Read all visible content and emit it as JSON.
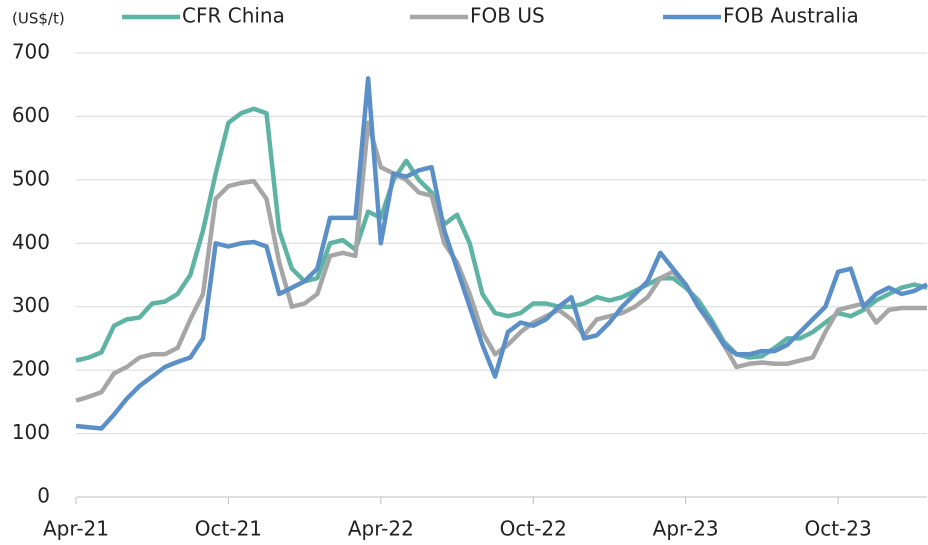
{
  "chart_data": {
    "type": "line",
    "y_label": "(US$/t)",
    "categories": [
      "Apr-21",
      null,
      null,
      null,
      null,
      null,
      null,
      null,
      null,
      null,
      null,
      null,
      "Oct-21",
      null,
      null,
      null,
      null,
      null,
      null,
      null,
      null,
      null,
      null,
      null,
      "Apr-22",
      null,
      null,
      null,
      null,
      null,
      null,
      null,
      null,
      null,
      null,
      null,
      "Oct-22",
      null,
      null,
      null,
      null,
      null,
      null,
      null,
      null,
      null,
      null,
      null,
      "Apr-23",
      null,
      null,
      null,
      null,
      null,
      null,
      null,
      null,
      null,
      null,
      null,
      "Oct-23",
      null,
      null,
      null,
      null,
      null,
      null,
      null
    ],
    "series": [
      {
        "name": "CFR China",
        "color": "#5fb3a3",
        "values": [
          215,
          220,
          228,
          270,
          280,
          283,
          305,
          308,
          320,
          350,
          420,
          510,
          590,
          605,
          612,
          605,
          420,
          360,
          340,
          345,
          400,
          405,
          390,
          450,
          440,
          500,
          530,
          500,
          480,
          430,
          445,
          400,
          320,
          290,
          285,
          290,
          305,
          305,
          300,
          300,
          305,
          315,
          310,
          315,
          325,
          335,
          345,
          345,
          330,
          310,
          280,
          245,
          225,
          220,
          222,
          235,
          250,
          250,
          260,
          275,
          290,
          285,
          295,
          310,
          320,
          330,
          335,
          330
        ]
      },
      {
        "name": "FOB US",
        "color": "#a6a6a6",
        "values": [
          152,
          158,
          165,
          195,
          205,
          220,
          225,
          225,
          235,
          280,
          320,
          470,
          490,
          495,
          498,
          470,
          370,
          300,
          305,
          320,
          380,
          385,
          380,
          590,
          520,
          510,
          500,
          480,
          475,
          400,
          370,
          320,
          260,
          225,
          240,
          260,
          275,
          285,
          295,
          280,
          255,
          280,
          285,
          290,
          300,
          315,
          345,
          355,
          335,
          300,
          270,
          240,
          205,
          210,
          212,
          210,
          210,
          215,
          220,
          260,
          295,
          300,
          305,
          275,
          295,
          298,
          298,
          298
        ]
      },
      {
        "name": "FOB Australia",
        "color": "#5b8fc7",
        "values": [
          112,
          110,
          108,
          130,
          155,
          175,
          190,
          205,
          213,
          220,
          250,
          400,
          395,
          400,
          402,
          395,
          320,
          330,
          340,
          360,
          440,
          440,
          440,
          660,
          400,
          510,
          505,
          515,
          520,
          420,
          360,
          300,
          240,
          190,
          260,
          275,
          270,
          280,
          300,
          315,
          250,
          255,
          275,
          300,
          320,
          340,
          385,
          360,
          335,
          300,
          275,
          240,
          225,
          225,
          230,
          230,
          240,
          260,
          280,
          300,
          355,
          360,
          300,
          320,
          330,
          320,
          325,
          335
        ]
      }
    ],
    "ylim": [
      0,
      700
    ],
    "yticks": [
      0,
      100,
      200,
      300,
      400,
      500,
      600,
      700
    ],
    "grid": true
  }
}
